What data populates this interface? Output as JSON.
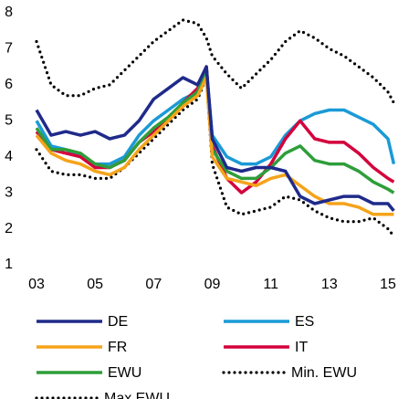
{
  "chart_data": {
    "type": "line",
    "x": [
      3,
      3.5,
      4,
      4.5,
      5,
      5.5,
      6,
      6.5,
      7,
      7.5,
      8,
      8.5,
      8.8,
      9,
      9.5,
      10,
      10.5,
      11,
      11.5,
      12,
      12.5,
      13,
      13.5,
      14,
      14.5,
      15,
      15.2
    ],
    "xlim": [
      3,
      15
    ],
    "xticks": [
      {
        "value": 3,
        "label": "03"
      },
      {
        "value": 5,
        "label": "05"
      },
      {
        "value": 7,
        "label": "07"
      },
      {
        "value": 9,
        "label": "09"
      },
      {
        "value": 11,
        "label": "11"
      },
      {
        "value": 13,
        "label": "13"
      },
      {
        "value": 15,
        "label": "15"
      }
    ],
    "ylim": [
      1,
      8
    ],
    "yticks": [
      1,
      2,
      3,
      4,
      5,
      6,
      7,
      8
    ],
    "grid": false,
    "series": [
      {
        "name": "DE",
        "color": "#1f2a8a",
        "style": "solid",
        "values": [
          5.3,
          4.6,
          4.7,
          4.6,
          4.7,
          4.5,
          4.6,
          5.0,
          5.6,
          5.9,
          6.2,
          6.0,
          6.5,
          4.5,
          3.7,
          3.6,
          3.7,
          3.7,
          3.6,
          2.9,
          2.7,
          2.8,
          2.9,
          2.9,
          2.7,
          2.7,
          2.5
        ]
      },
      {
        "name": "ES",
        "color": "#1a9ad6",
        "style": "solid",
        "values": [
          5.0,
          4.3,
          4.2,
          4.0,
          3.8,
          3.8,
          4.0,
          4.6,
          5.0,
          5.3,
          5.6,
          5.8,
          6.4,
          4.6,
          4.0,
          3.8,
          3.8,
          4.0,
          4.6,
          5.0,
          5.2,
          5.3,
          5.3,
          5.1,
          4.9,
          4.5,
          3.8
        ]
      },
      {
        "name": "FR",
        "color": "#f5a31a",
        "style": "solid",
        "values": [
          4.6,
          4.1,
          3.9,
          3.8,
          3.6,
          3.5,
          3.7,
          4.2,
          4.6,
          5.0,
          5.4,
          5.7,
          6.2,
          4.0,
          3.4,
          3.3,
          3.2,
          3.4,
          3.5,
          3.2,
          2.9,
          2.7,
          2.7,
          2.6,
          2.4,
          2.4,
          2.4
        ]
      },
      {
        "name": "IT",
        "color": "#d4003c",
        "style": "solid",
        "values": [
          4.7,
          4.2,
          4.1,
          4.0,
          3.7,
          3.7,
          3.9,
          4.4,
          4.7,
          5.0,
          5.5,
          5.9,
          6.5,
          4.3,
          3.4,
          3.0,
          3.3,
          3.8,
          4.5,
          5.0,
          4.5,
          4.4,
          4.4,
          4.1,
          3.7,
          3.4,
          3.3
        ]
      },
      {
        "name": "EWU",
        "color": "#2e9e3a",
        "style": "solid",
        "values": [
          4.8,
          4.2,
          4.2,
          4.1,
          3.8,
          3.7,
          3.9,
          4.4,
          4.8,
          5.1,
          5.5,
          5.8,
          6.5,
          4.2,
          3.6,
          3.4,
          3.4,
          3.7,
          4.1,
          4.3,
          3.9,
          3.8,
          3.8,
          3.6,
          3.3,
          3.1,
          3.0
        ]
      },
      {
        "name": "Min. EWU",
        "color": "#000000",
        "style": "dotted",
        "values": [
          4.2,
          3.6,
          3.5,
          3.5,
          3.4,
          3.4,
          3.7,
          4.1,
          4.5,
          4.9,
          5.3,
          5.6,
          6.2,
          3.8,
          2.6,
          2.4,
          2.5,
          2.6,
          2.9,
          2.8,
          2.5,
          2.3,
          2.2,
          2.2,
          2.3,
          2.0,
          1.8
        ]
      },
      {
        "name": "Max EWU",
        "color": "#000000",
        "style": "dotted",
        "values": [
          7.2,
          6.0,
          5.7,
          5.7,
          5.9,
          6.0,
          6.4,
          6.8,
          7.2,
          7.5,
          7.8,
          7.7,
          7.3,
          6.8,
          6.3,
          5.9,
          6.3,
          6.7,
          7.2,
          7.5,
          7.3,
          7.0,
          6.8,
          6.5,
          6.2,
          5.8,
          5.5
        ]
      }
    ]
  }
}
